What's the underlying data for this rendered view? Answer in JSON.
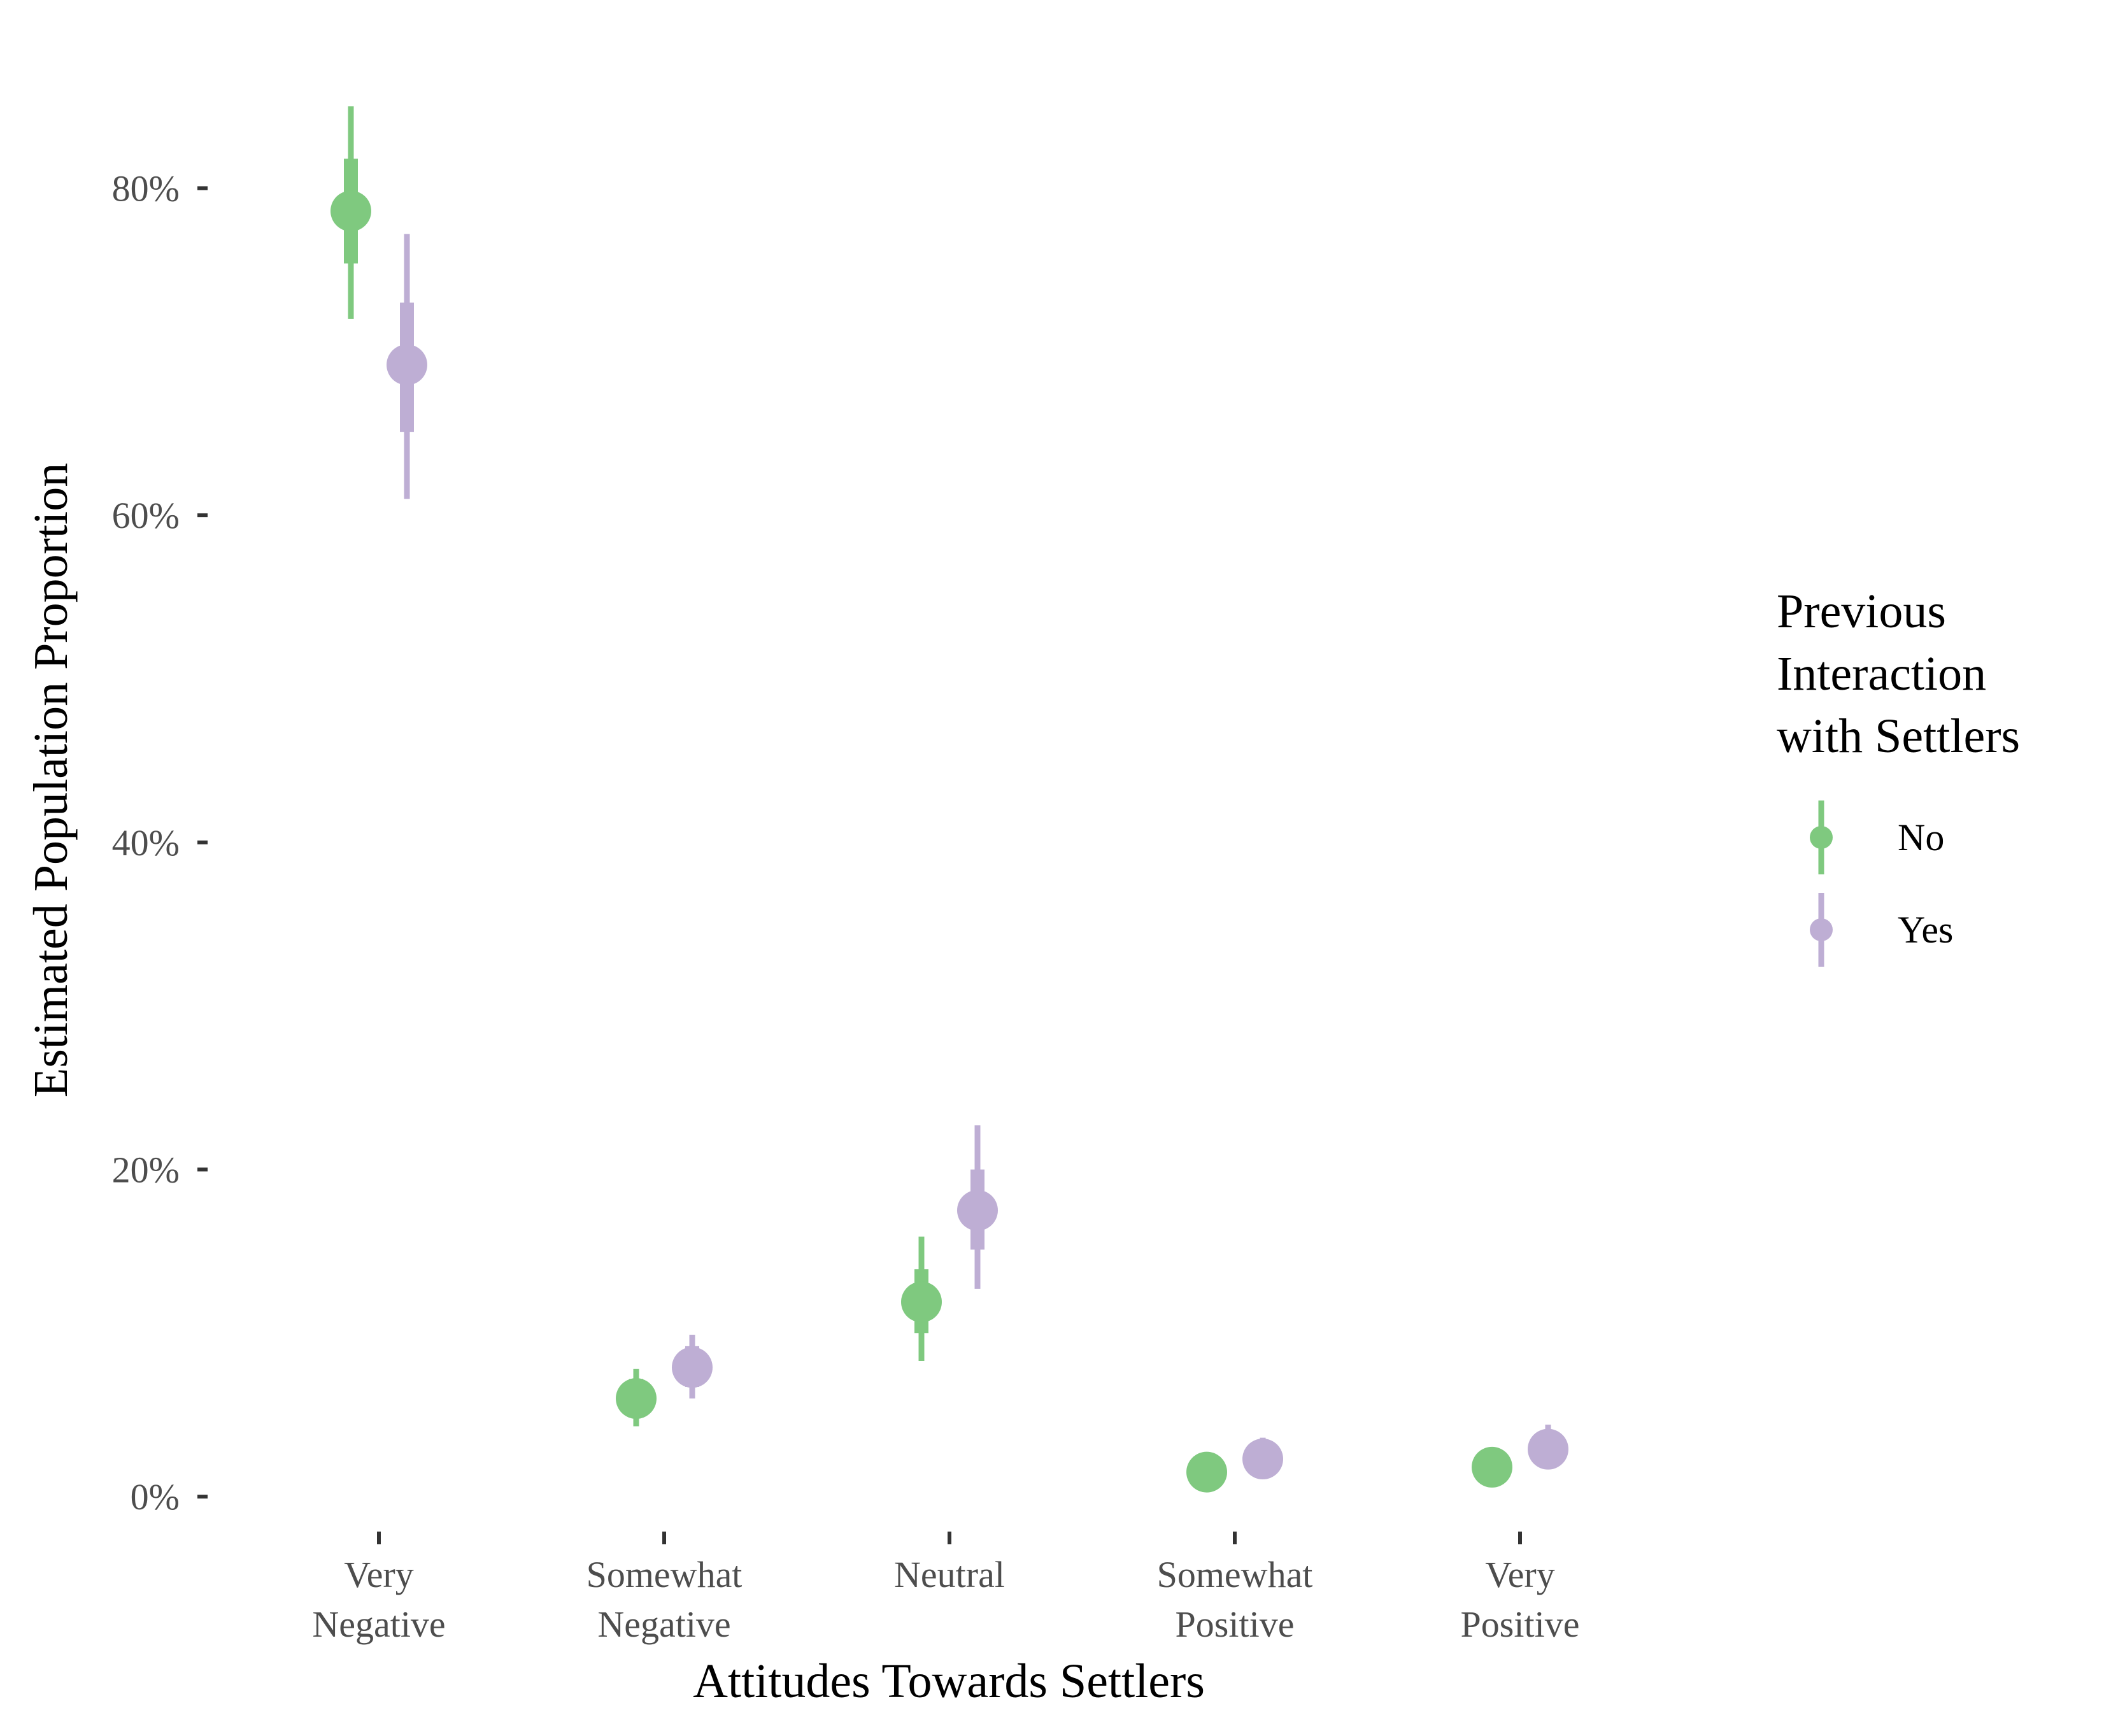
{
  "chart_data": {
    "type": "pointrange",
    "xlabel": "Attitudes Towards Settlers",
    "ylabel": "Estimated Population Proportion",
    "categories": [
      [
        "Very",
        "Negative"
      ],
      [
        "Somewhat",
        "Negative"
      ],
      [
        "Neutral"
      ],
      [
        "Somewhat",
        "Positive"
      ],
      [
        "Very",
        "Positive"
      ]
    ],
    "y_ticks": [
      0,
      20,
      40,
      60,
      80
    ],
    "y_tick_labels": [
      "0%",
      "20%",
      "40%",
      "60%",
      "80%"
    ],
    "ylim": [
      -3.5,
      88
    ],
    "grid": false,
    "legend": {
      "title_lines": [
        "Previous",
        "Interaction",
        "with Settlers"
      ],
      "position": "right"
    },
    "series": [
      {
        "name": "No",
        "color": "#7fc97f",
        "points": [
          {
            "estimate": 78.6,
            "inner": [
              75.4,
              81.8
            ],
            "outer": [
              72.0,
              85.0
            ]
          },
          {
            "estimate": 6.0,
            "inner": [
              5.0,
              7.2
            ],
            "outer": [
              4.3,
              7.8
            ]
          },
          {
            "estimate": 11.9,
            "inner": [
              10.0,
              13.9
            ],
            "outer": [
              8.3,
              15.9
            ]
          },
          {
            "estimate": 1.5,
            "inner": [
              1.0,
              2.0
            ],
            "outer": [
              0.7,
              2.5
            ]
          },
          {
            "estimate": 1.8,
            "inner": [
              1.3,
              2.4
            ],
            "outer": [
              0.9,
              2.9
            ]
          }
        ]
      },
      {
        "name": "Yes",
        "color": "#beaed4",
        "points": [
          {
            "estimate": 69.2,
            "inner": [
              65.1,
              73.0
            ],
            "outer": [
              61.0,
              77.2
            ]
          },
          {
            "estimate": 7.9,
            "inner": [
              6.7,
              9.2
            ],
            "outer": [
              6.0,
              9.9
            ]
          },
          {
            "estimate": 17.5,
            "inner": [
              15.1,
              20.0
            ],
            "outer": [
              12.7,
              22.7
            ]
          },
          {
            "estimate": 2.3,
            "inner": [
              1.8,
              3.0
            ],
            "outer": [
              1.4,
              3.6
            ]
          },
          {
            "estimate": 2.9,
            "inner": [
              2.3,
              3.7
            ],
            "outer": [
              1.9,
              4.4
            ]
          }
        ]
      }
    ]
  }
}
